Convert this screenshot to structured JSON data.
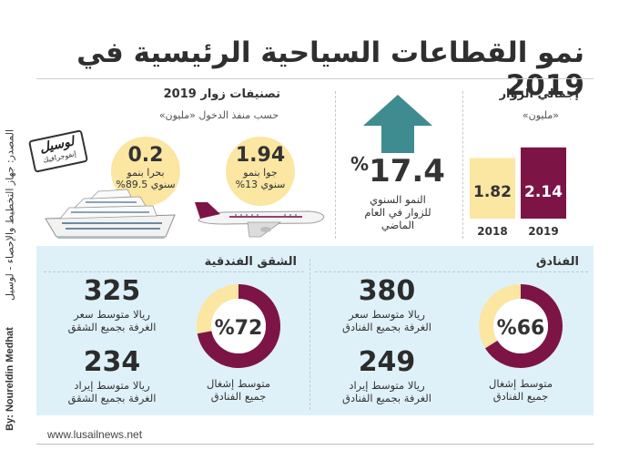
{
  "title": "نمو القطاعات السياحية الرئيسية في 2019",
  "sidebar": {
    "source": "المصدر: جهاز التخطيط والإحصاء - لوسيل",
    "byline": "By: Noureldin Medhat"
  },
  "total_visitors": {
    "title": "إجمالي الزوار",
    "unit": "«مليون»"
  },
  "growth": {
    "value": "17.4",
    "percent": "%",
    "lines": [
      "النمو السنوي",
      "للزوار في العام",
      "الماضي"
    ]
  },
  "classification": {
    "title": "تصنيفات زوار 2019",
    "subtitle": "حسب منفذ الدخول «مليون»",
    "air": {
      "value": "1.94",
      "line1": "جوا بنمو",
      "line2": "سنوي 13%"
    },
    "sea": {
      "value": "0.2",
      "line1": "بحرا بنمو",
      "line2": "سنوي 89.5%"
    }
  },
  "stamp": {
    "name": "لوسيل",
    "sub": "إنفوجرافيك"
  },
  "hotels": {
    "title": "الفنادق",
    "occupancy_label": "%66",
    "occupancy_lines": [
      "متوسط إشغال",
      "جميع الفنادق"
    ],
    "rate_value": "380",
    "rate_lines": [
      "ريالا متوسط سعر",
      "الغرفة بجميع الفنادق"
    ],
    "revenue_value": "249",
    "revenue_lines": [
      "ريالا متوسط إيراد",
      "الغرفة بجميع الفنادق"
    ]
  },
  "apartments": {
    "title": "الشقق الفندقية",
    "occupancy_label": "%72",
    "occupancy_lines": [
      "متوسط إشغال",
      "جميع الفنادق"
    ],
    "rate_value": "325",
    "rate_lines": [
      "ريالا متوسط سعر",
      "الغرفة بجميع الشقق"
    ],
    "revenue_value": "234",
    "revenue_lines": [
      "ريالا متوسط إيراد",
      "الغرفة بجميع الشقق"
    ]
  },
  "footer": {
    "url": "www.lusailnews.net"
  },
  "colors": {
    "maroon": "#7d1446",
    "cream": "#fbe6a2",
    "teal": "#3e8c8f",
    "panel": "#dff1f8"
  },
  "chart_data": [
    {
      "type": "bar",
      "title": "إجمالي الزوار",
      "categories": [
        "2018",
        "2019"
      ],
      "values": [
        1.82,
        2.14
      ],
      "value_labels": [
        "1.82",
        "2.14"
      ],
      "ylabel": "",
      "ylim": [
        0,
        2.3
      ],
      "grid": false,
      "legend": "none"
    },
    {
      "type": "pie",
      "title": "الفنادق",
      "labels": [
        "متوسط إشغال جميع الفنادق"
      ],
      "values": [
        66
      ],
      "unit": "%"
    },
    {
      "type": "pie",
      "title": "الشقق الفندقية",
      "labels": [
        "متوسط إشغال جميع الفنادق"
      ],
      "values": [
        72
      ],
      "unit": "%"
    }
  ]
}
